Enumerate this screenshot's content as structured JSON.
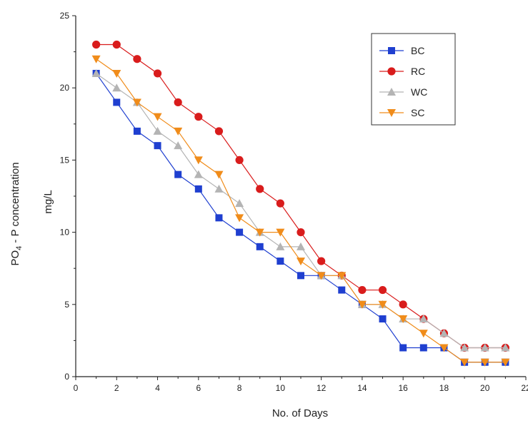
{
  "chart_data": {
    "type": "line",
    "title": "",
    "xlabel": "No. of Days",
    "ylabel_main": "PO",
    "ylabel_sub": "4",
    "ylabel_rest": " - P concentration",
    "ylabel_unit": "mg/L",
    "xlim": [
      0,
      22
    ],
    "ylim": [
      0,
      25
    ],
    "xticks": [
      0,
      2,
      4,
      6,
      8,
      10,
      12,
      14,
      16,
      18,
      20,
      22
    ],
    "yticks": [
      0,
      5,
      10,
      15,
      20,
      25
    ],
    "grid": false,
    "legend_position": "top-right",
    "x": [
      1,
      2,
      3,
      4,
      5,
      6,
      7,
      8,
      9,
      10,
      11,
      12,
      13,
      14,
      15,
      16,
      17,
      18,
      19,
      20,
      21
    ],
    "series": [
      {
        "name": "BC",
        "color": "#1f3fd0",
        "marker": "square",
        "values": [
          21,
          19,
          17,
          16,
          14,
          13,
          11,
          10,
          9,
          8,
          7,
          7,
          6,
          5,
          4,
          2,
          2,
          2,
          1,
          1,
          1
        ]
      },
      {
        "name": "RC",
        "color": "#d91c1c",
        "marker": "circle",
        "values": [
          23,
          23,
          22,
          21,
          19,
          18,
          17,
          15,
          13,
          12,
          10,
          8,
          7,
          6,
          6,
          5,
          4,
          3,
          2,
          2,
          2
        ]
      },
      {
        "name": "WC",
        "color": "#b4b4b4",
        "marker": "triangle-up",
        "values": [
          21,
          20,
          19,
          17,
          16,
          14,
          13,
          12,
          10,
          9,
          9,
          7,
          7,
          5,
          5,
          4,
          4,
          3,
          2,
          2,
          2
        ]
      },
      {
        "name": "SC",
        "color": "#f08c1a",
        "marker": "triangle-down",
        "values": [
          22,
          21,
          19,
          18,
          17,
          15,
          14,
          11,
          10,
          10,
          8,
          7,
          7,
          5,
          5,
          4,
          3,
          2,
          1,
          1,
          1
        ]
      }
    ]
  }
}
